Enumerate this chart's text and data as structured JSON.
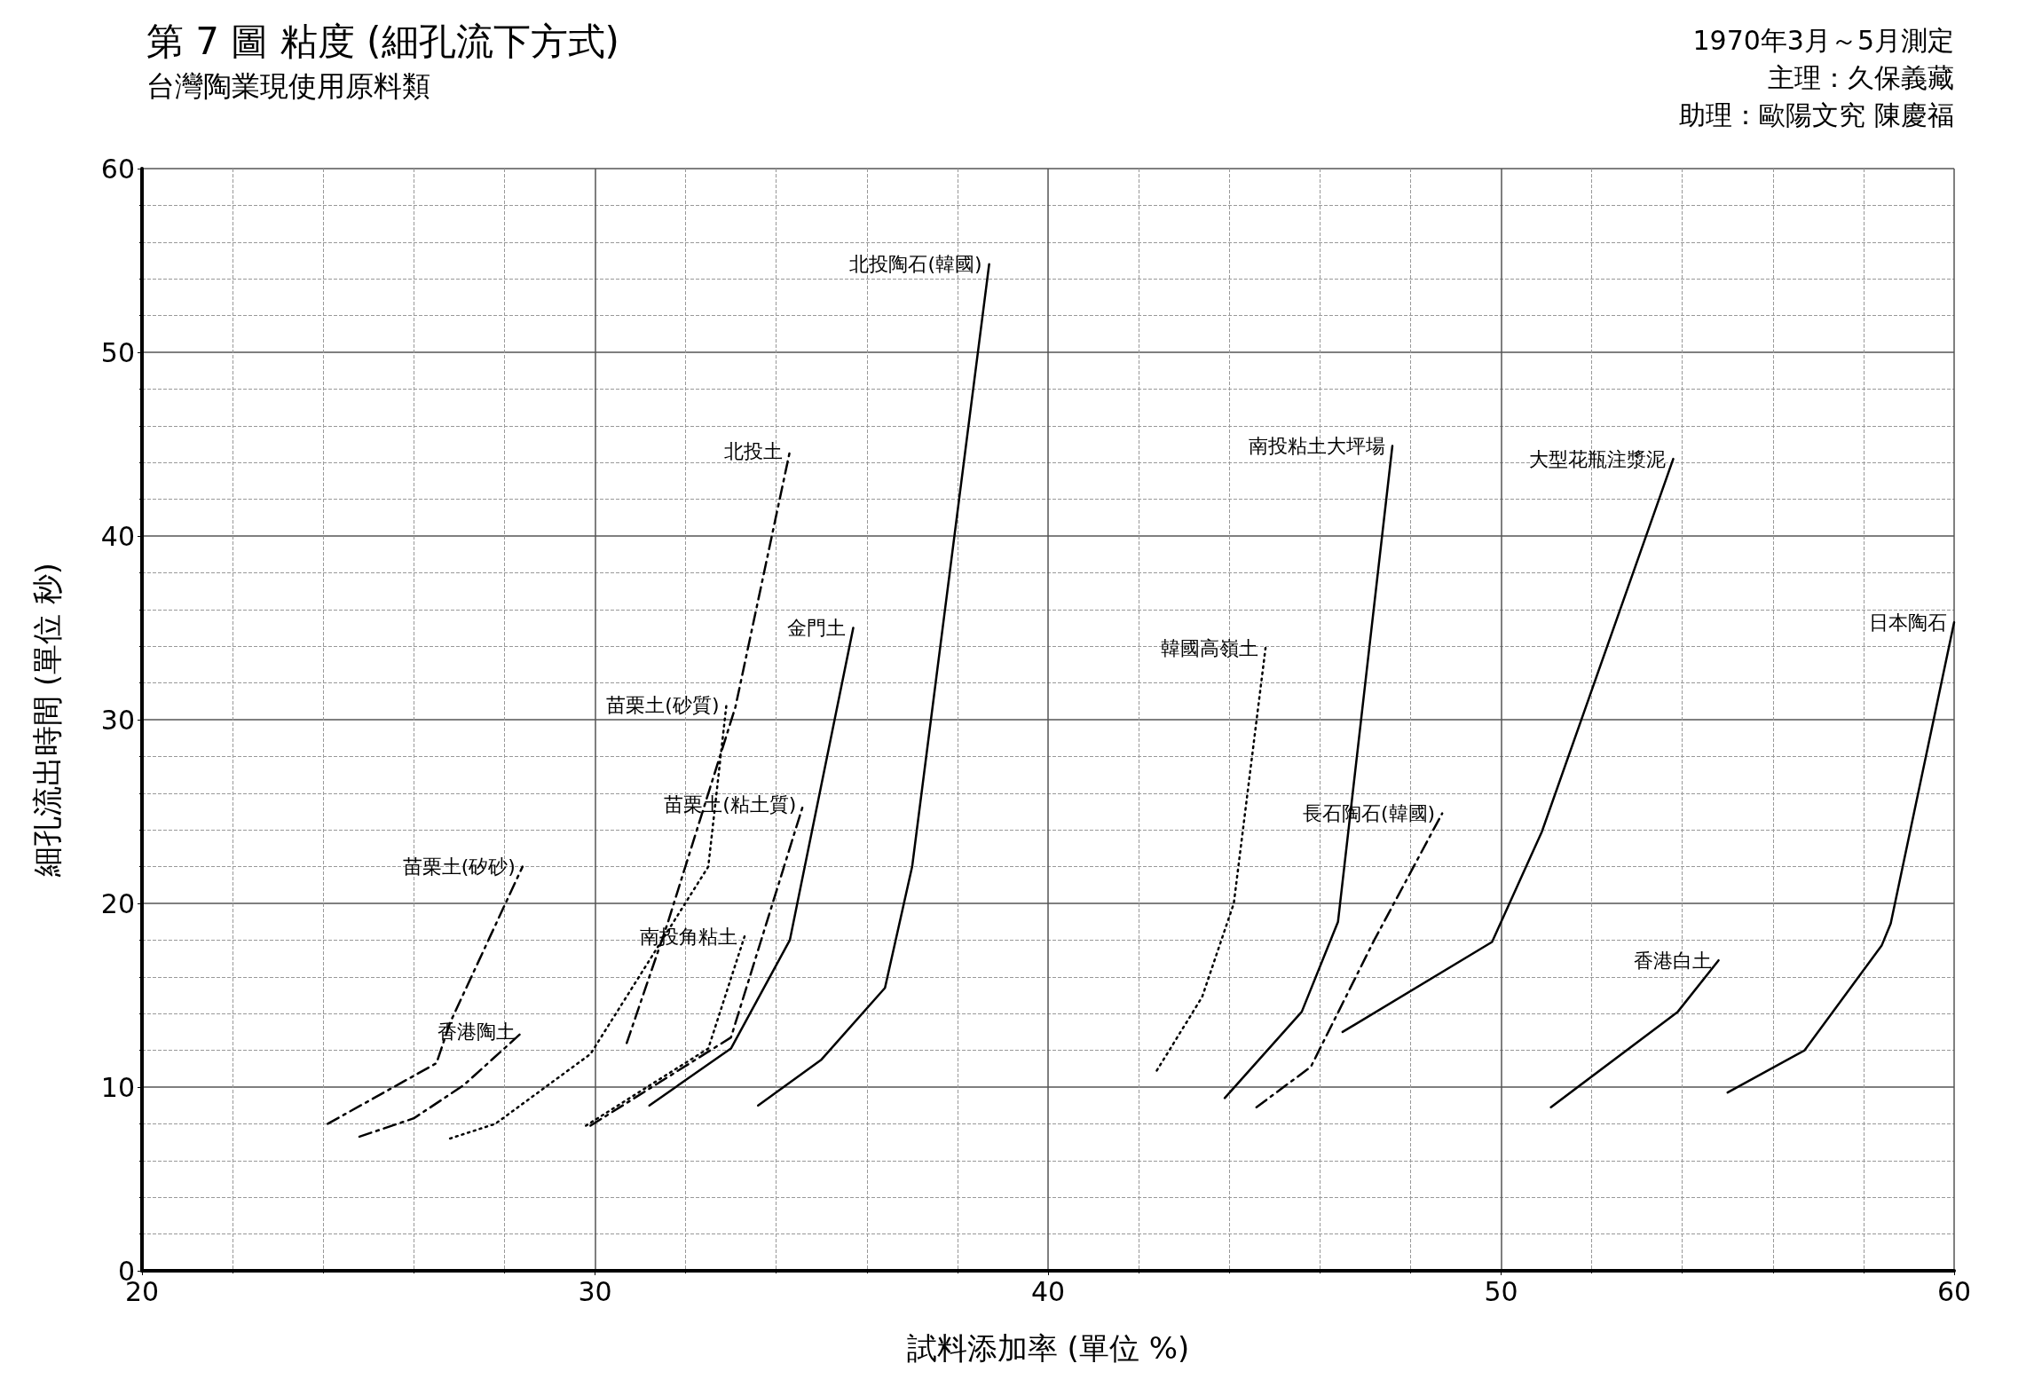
{
  "chart_data": {
    "type": "line",
    "title": "第 7 圖 粘度 (細孔流下方式)",
    "subtitle": "台灣陶業現使用原料類",
    "xlabel": "試料添加率 (單位 %)",
    "ylabel": "細孔流出時間 (單位 秒)",
    "annotations": [
      "1970年3月～5月測定",
      "主理：久保義藏",
      "助理：歐陽文究 陳慶福"
    ],
    "xlim": [
      20,
      60
    ],
    "xticks": [
      20,
      30,
      40,
      50,
      60
    ],
    "ylim": [
      0,
      60
    ],
    "yticks": [
      0,
      10,
      20,
      30,
      40,
      50,
      60
    ],
    "grid": true,
    "legend": false,
    "marker": "none",
    "series": [
      {
        "name": "日本陶石",
        "color": "#000000",
        "line_style": "solid",
        "x": [
          55.0,
          56.7,
          58.4,
          58.6,
          60.0
        ],
        "values": [
          9.7,
          12.0,
          17.7,
          18.9,
          35.3
        ]
      },
      {
        "name": "香港白土",
        "color": "#000000",
        "line_style": "solid",
        "x": [
          51.1,
          53.9,
          54.8
        ],
        "values": [
          8.9,
          14.1,
          16.9
        ]
      },
      {
        "name": "大型花瓶注漿泥",
        "color": "#000000",
        "line_style": "solid",
        "x": [
          46.5,
          49.8,
          50.9,
          53.8
        ],
        "values": [
          13.0,
          17.9,
          23.9,
          44.2
        ]
      },
      {
        "name": "南投粘土大坪場",
        "color": "#000000",
        "line_style": "solid",
        "x": [
          43.9,
          45.6,
          46.4,
          47.6
        ],
        "values": [
          9.4,
          14.1,
          19.0,
          44.9
        ]
      },
      {
        "name": "長石陶石(韓國)",
        "color": "#000000",
        "line_style": "dashed",
        "x": [
          44.6,
          45.8,
          47.2,
          48.7
        ],
        "values": [
          8.9,
          11.1,
          18.0,
          24.9
        ]
      },
      {
        "name": "韓國高嶺土",
        "color": "#000000",
        "line_style": "dotted",
        "x": [
          42.4,
          43.4,
          44.1,
          44.8
        ],
        "values": [
          10.9,
          14.9,
          20.0,
          33.9
        ]
      },
      {
        "name": "北投陶石(韓國)",
        "color": "#000000",
        "line_style": "solid",
        "x": [
          33.6,
          35.0,
          36.4,
          37.0,
          38.7
        ],
        "values": [
          9.0,
          11.5,
          15.4,
          22.0,
          54.8
        ]
      },
      {
        "name": "金門土",
        "color": "#000000",
        "line_style": "solid",
        "x": [
          31.2,
          33.0,
          34.3,
          35.7
        ],
        "values": [
          9.0,
          12.1,
          18.0,
          35.0
        ]
      },
      {
        "name": "苗栗土(粘土質)",
        "color": "#000000",
        "line_style": "dashed",
        "x": [
          29.9,
          33.0,
          34.6
        ],
        "values": [
          7.9,
          12.7,
          25.4
        ]
      },
      {
        "name": "北投土",
        "color": "#000000",
        "line_style": "dashed",
        "x": [
          30.7,
          31.6,
          33.1,
          34.3
        ],
        "values": [
          12.4,
          18.9,
          30.7,
          44.6
        ]
      },
      {
        "name": "苗栗土(砂質)",
        "color": "#000000",
        "line_style": "dotted",
        "x": [
          26.8,
          27.8,
          29.9,
          32.5,
          32.9
        ],
        "values": [
          7.2,
          8.0,
          11.8,
          22.0,
          30.8
        ]
      },
      {
        "name": "南投角粘土",
        "color": "#000000",
        "line_style": "dotted",
        "x": [
          29.8,
          32.5,
          33.3
        ],
        "values": [
          7.9,
          12.1,
          18.2
        ]
      },
      {
        "name": "苗栗土(矽砂)",
        "color": "#000000",
        "line_style": "dashed",
        "x": [
          24.1,
          26.5,
          26.8,
          28.4
        ],
        "values": [
          8.0,
          11.3,
          13.5,
          22.0
        ]
      },
      {
        "name": "香港陶土",
        "color": "#000000",
        "line_style": "dashed",
        "x": [
          24.8,
          26.0,
          27.1,
          28.4
        ],
        "values": [
          7.3,
          8.3,
          10.1,
          13.0
        ]
      }
    ]
  }
}
